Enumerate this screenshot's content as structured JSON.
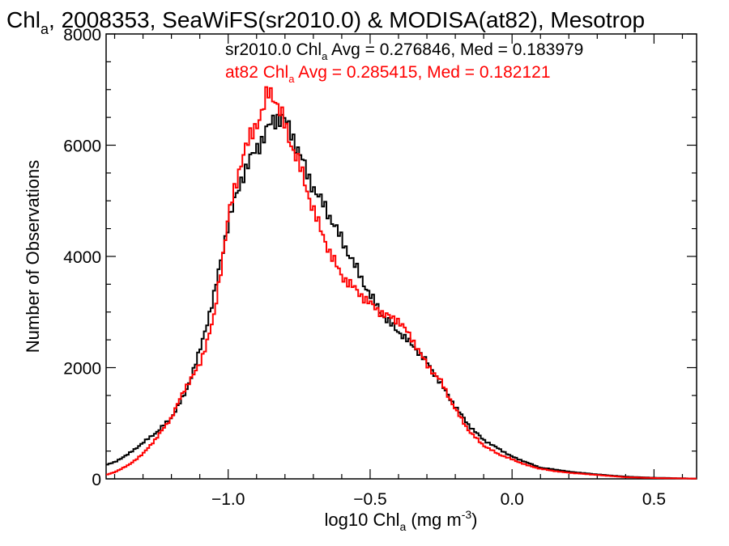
{
  "chart_data": {
    "type": "line",
    "title": {
      "prefix": "Chl",
      "sub": "a",
      "rest": ", 2008353, SeaWiFS(sr2010.0) & MODISA(at82), Mesotrop"
    },
    "xlabel": {
      "prefix": "log10 Chl",
      "sub": "a",
      "unit": " (mg m",
      "sup": "-3",
      "close": ")"
    },
    "ylabel": "Number of Observations",
    "xlim": [
      -1.43,
      0.65
    ],
    "ylim": [
      0,
      8000
    ],
    "x_ticks": [
      -1.0,
      -0.5,
      0.0,
      0.5
    ],
    "x_tick_labels": [
      "−1.0",
      "−0.5",
      "0.0",
      "0.5"
    ],
    "y_ticks": [
      0,
      2000,
      4000,
      6000,
      8000
    ],
    "y_tick_labels": [
      "0",
      "2000",
      "4000",
      "6000",
      "8000"
    ],
    "legend_placement": "top-center",
    "series": [
      {
        "label_prefix": "sr2010.0 Chl",
        "label_sub": "a",
        "label_rest": " Avg = 0.276846, Med = 0.183979",
        "color": "#000000",
        "x": [
          -1.43,
          -1.4,
          -1.35,
          -1.3,
          -1.25,
          -1.2,
          -1.15,
          -1.1,
          -1.05,
          -1.0,
          -0.95,
          -0.9,
          -0.88,
          -0.86,
          -0.84,
          -0.82,
          -0.8,
          -0.78,
          -0.76,
          -0.74,
          -0.72,
          -0.7,
          -0.68,
          -0.66,
          -0.64,
          -0.62,
          -0.6,
          -0.55,
          -0.5,
          -0.45,
          -0.4,
          -0.35,
          -0.3,
          -0.25,
          -0.2,
          -0.15,
          -0.1,
          -0.05,
          0.0,
          0.05,
          0.1,
          0.15,
          0.2,
          0.3,
          0.4,
          0.5,
          0.6,
          0.65
        ],
        "y": [
          250,
          300,
          450,
          650,
          850,
          1100,
          1550,
          2300,
          3300,
          4600,
          5450,
          5950,
          6100,
          6300,
          6450,
          6500,
          6450,
          6250,
          6000,
          5750,
          5450,
          5250,
          5050,
          4900,
          4700,
          4500,
          4300,
          3800,
          3300,
          2900,
          2650,
          2400,
          2100,
          1700,
          1300,
          950,
          700,
          550,
          400,
          300,
          200,
          170,
          130,
          80,
          40,
          20,
          10,
          5
        ]
      },
      {
        "label_prefix": "at82 Chl",
        "label_sub": "a",
        "label_rest": " Avg = 0.285415, Med = 0.182121",
        "color": "#ff0000",
        "x": [
          -1.43,
          -1.4,
          -1.35,
          -1.3,
          -1.25,
          -1.2,
          -1.15,
          -1.1,
          -1.05,
          -1.0,
          -0.95,
          -0.9,
          -0.88,
          -0.86,
          -0.84,
          -0.82,
          -0.8,
          -0.78,
          -0.76,
          -0.74,
          -0.72,
          -0.7,
          -0.68,
          -0.66,
          -0.64,
          -0.62,
          -0.6,
          -0.55,
          -0.5,
          -0.45,
          -0.4,
          -0.35,
          -0.3,
          -0.25,
          -0.2,
          -0.15,
          -0.1,
          -0.05,
          0.0,
          0.05,
          0.1,
          0.15,
          0.2,
          0.3,
          0.4,
          0.5,
          0.6,
          0.65
        ],
        "y": [
          70,
          120,
          250,
          450,
          750,
          1100,
          1650,
          2050,
          2900,
          4700,
          5800,
          6400,
          6600,
          6950,
          6900,
          6650,
          6350,
          6050,
          5800,
          5500,
          5150,
          4850,
          4550,
          4300,
          4050,
          3850,
          3650,
          3400,
          3150,
          2950,
          2850,
          2500,
          2050,
          1750,
          1250,
          850,
          600,
          450,
          350,
          250,
          180,
          140,
          110,
          70,
          30,
          15,
          8,
          5
        ]
      }
    ]
  }
}
